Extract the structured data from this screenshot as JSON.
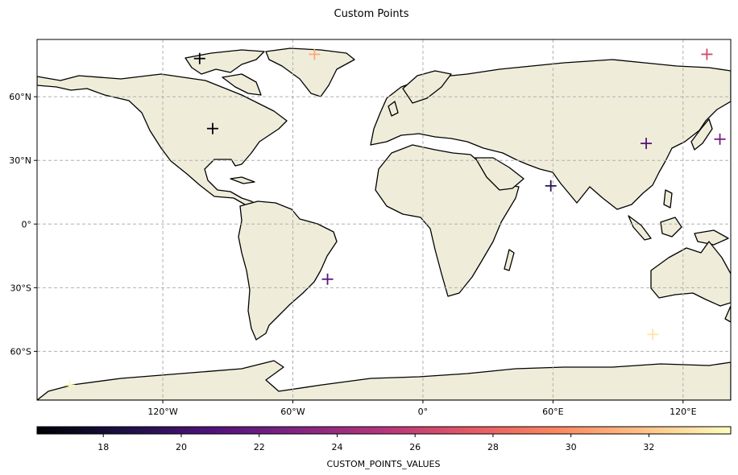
{
  "title": "Custom Points",
  "map": {
    "projection": "PlateCarree",
    "extent": {
      "lon": [
        -178,
        142
      ],
      "lat": [
        -83,
        87
      ]
    },
    "land_color": "#efedda",
    "coast_color": "#000000",
    "grid": {
      "on": true,
      "style": "dashed",
      "color": "#b0b0b0",
      "lon_values": [
        -120,
        -60,
        0,
        60,
        120
      ],
      "lat_values": [
        60,
        30,
        0,
        -30,
        -60
      ]
    }
  },
  "axes": {
    "x_ticks": [
      "120°W",
      "60°W",
      "0°",
      "60°E",
      "120°E"
    ],
    "y_ticks": [
      "60°N",
      "30°N",
      "0°",
      "30°S",
      "60°S"
    ]
  },
  "chart_data": {
    "type": "scatter",
    "marker": "plus",
    "colormap": "magma",
    "points": [
      {
        "lon": -103,
        "lat": 78,
        "value": 16.5
      },
      {
        "lon": -97,
        "lat": 45,
        "value": 16.6
      },
      {
        "lon": -50,
        "lat": 80,
        "value": 30.9
      },
      {
        "lon": -44,
        "lat": -26,
        "value": 21.3
      },
      {
        "lon": 59,
        "lat": 18,
        "value": 19.2
      },
      {
        "lon": 103,
        "lat": 38,
        "value": 21.0
      },
      {
        "lon": 106,
        "lat": -52,
        "value": 33.2
      },
      {
        "lon": 131,
        "lat": 80,
        "value": 26.4
      },
      {
        "lon": 137,
        "lat": 40,
        "value": 22.4
      },
      {
        "lon": -163,
        "lat": -76,
        "value": 33.9
      }
    ],
    "colorbar": {
      "label": "CUSTOM_POINTS_VALUES",
      "range": [
        16.3,
        34.1
      ],
      "ticks": [
        "18",
        "20",
        "22",
        "24",
        "26",
        "28",
        "30",
        "32"
      ],
      "tick_values": [
        18,
        20,
        22,
        24,
        26,
        28,
        30,
        32
      ]
    }
  }
}
